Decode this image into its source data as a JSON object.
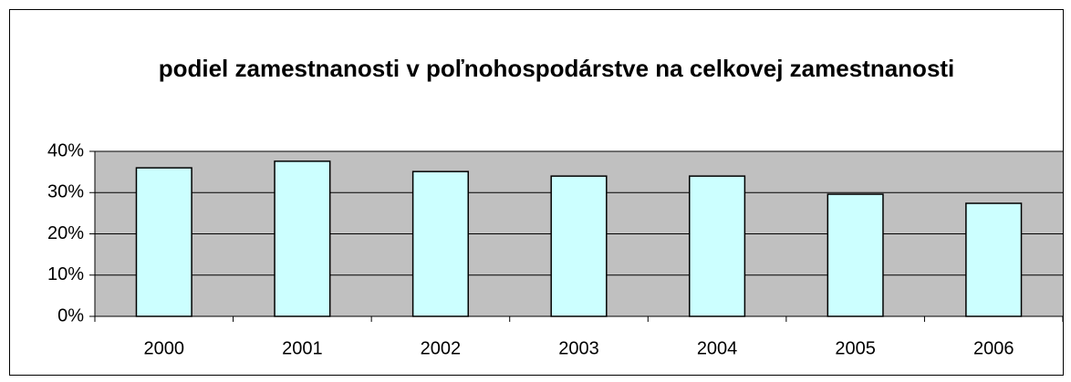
{
  "chart_data": {
    "type": "bar",
    "title": "podiel zamestnanosti v poľnohospodárstve na celkovej zamestnanosti",
    "categories": [
      "2000",
      "2001",
      "2002",
      "2003",
      "2004",
      "2005",
      "2006"
    ],
    "values": [
      36.0,
      37.6,
      35.1,
      34.0,
      34.0,
      29.6,
      27.4
    ],
    "color": "#ccffff",
    "plot_background": "#c0c0c0",
    "ylim": [
      0,
      40
    ],
    "yticks": [
      {
        "value": 0,
        "label": "0%"
      },
      {
        "value": 10,
        "label": "10%"
      },
      {
        "value": 20,
        "label": "20%"
      },
      {
        "value": 30,
        "label": "30%"
      },
      {
        "value": 40,
        "label": "40%"
      }
    ],
    "grid": true
  }
}
